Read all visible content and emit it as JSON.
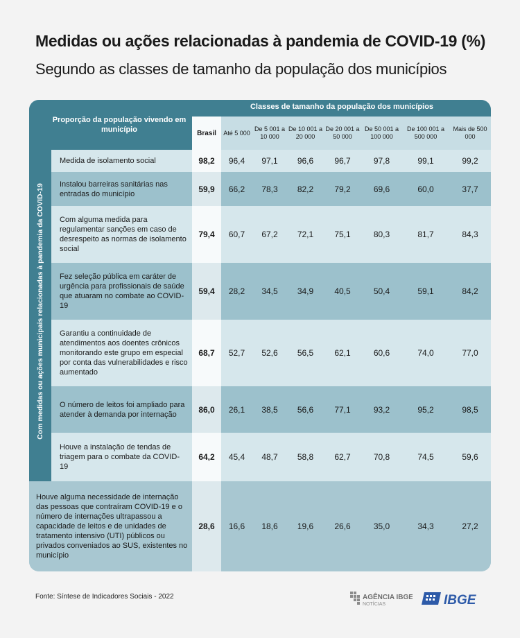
{
  "title": "Medidas ou ações relacionadas à pandemia de COVID-19 (%)",
  "subtitle": "Segundo as classes de tamanho da população dos municípios",
  "chart_data": {
    "type": "table",
    "group_header": "Classes de tamanho da população dos municípios",
    "row_header": "Proporção da população vivendo em município",
    "side_label": "Com medidas ou ações municipais relacionadas à pandemia da COVID-19",
    "columns": [
      "Brasil",
      "Até 5 000",
      "De 5 001 a 10 000",
      "De 10 001 a 20 000",
      "De 20 001 a 50 000",
      "De 50 001 a 100 000",
      "De 100 001 a 500 000",
      "Mais de 500 000"
    ],
    "rows": [
      {
        "label": "Medida de isolamento social",
        "values": [
          "98,2",
          "96,4",
          "97,1",
          "96,6",
          "96,7",
          "97,8",
          "99,1",
          "99,2"
        ]
      },
      {
        "label": "Instalou barreiras sanitárias nas entradas do município",
        "values": [
          "59,9",
          "66,2",
          "78,3",
          "82,2",
          "79,2",
          "69,6",
          "60,0",
          "37,7"
        ]
      },
      {
        "label": "Com alguma medida para regulamentar sanções em caso de desrespeito as normas de isolamento social",
        "values": [
          "79,4",
          "60,7",
          "67,2",
          "72,1",
          "75,1",
          "80,3",
          "81,7",
          "84,3"
        ]
      },
      {
        "label": "Fez seleção pública em caráter de urgência para profissionais de saúde que atuaram no combate ao COVID-19",
        "values": [
          "59,4",
          "28,2",
          "34,5",
          "34,9",
          "40,5",
          "50,4",
          "59,1",
          "84,2"
        ]
      },
      {
        "label": "Garantiu a continuidade de atendimentos aos doentes crônicos monitorando este grupo em especial por conta das vulnerabilidades e risco aumentado",
        "values": [
          "68,7",
          "52,7",
          "52,6",
          "56,5",
          "62,1",
          "60,6",
          "74,0",
          "77,0"
        ]
      },
      {
        "label": "O número de leitos foi ampliado para atender à demanda por internação",
        "values": [
          "86,0",
          "26,1",
          "38,5",
          "56,6",
          "77,1",
          "93,2",
          "95,2",
          "98,5"
        ]
      },
      {
        "label": "Houve a instalação de tendas de triagem para o combate da COVID-19",
        "values": [
          "64,2",
          "45,4",
          "48,7",
          "58,8",
          "62,7",
          "70,8",
          "74,5",
          "59,6"
        ]
      }
    ],
    "last_row": {
      "label": "Houve alguma necessidade de internação das pessoas que contraíram COVID-19 e o número de internações ultrapassou a capacidade de leitos e de unidades de tratamento intensivo (UTI) públicos ou privados conveniados ao SUS, existentes no município",
      "values": [
        "28,6",
        "16,6",
        "18,6",
        "19,6",
        "26,6",
        "35,0",
        "34,3",
        "27,2"
      ]
    }
  },
  "colors": {
    "header": "#407f91",
    "row_dark": "#9cc1cc",
    "row_light": "#d6e7ec",
    "brasil_dark": "#dde9ed",
    "brasil_light": "#f7fafb",
    "last_row": "#a8c7d1"
  },
  "footer": {
    "source": "Fonte: Síntese de Indicadores Sociais - 2022",
    "agencia_line1": "AGÊNCIA IBGE",
    "agencia_line2": "NOTÍCIAS",
    "ibge": "IBGE"
  }
}
